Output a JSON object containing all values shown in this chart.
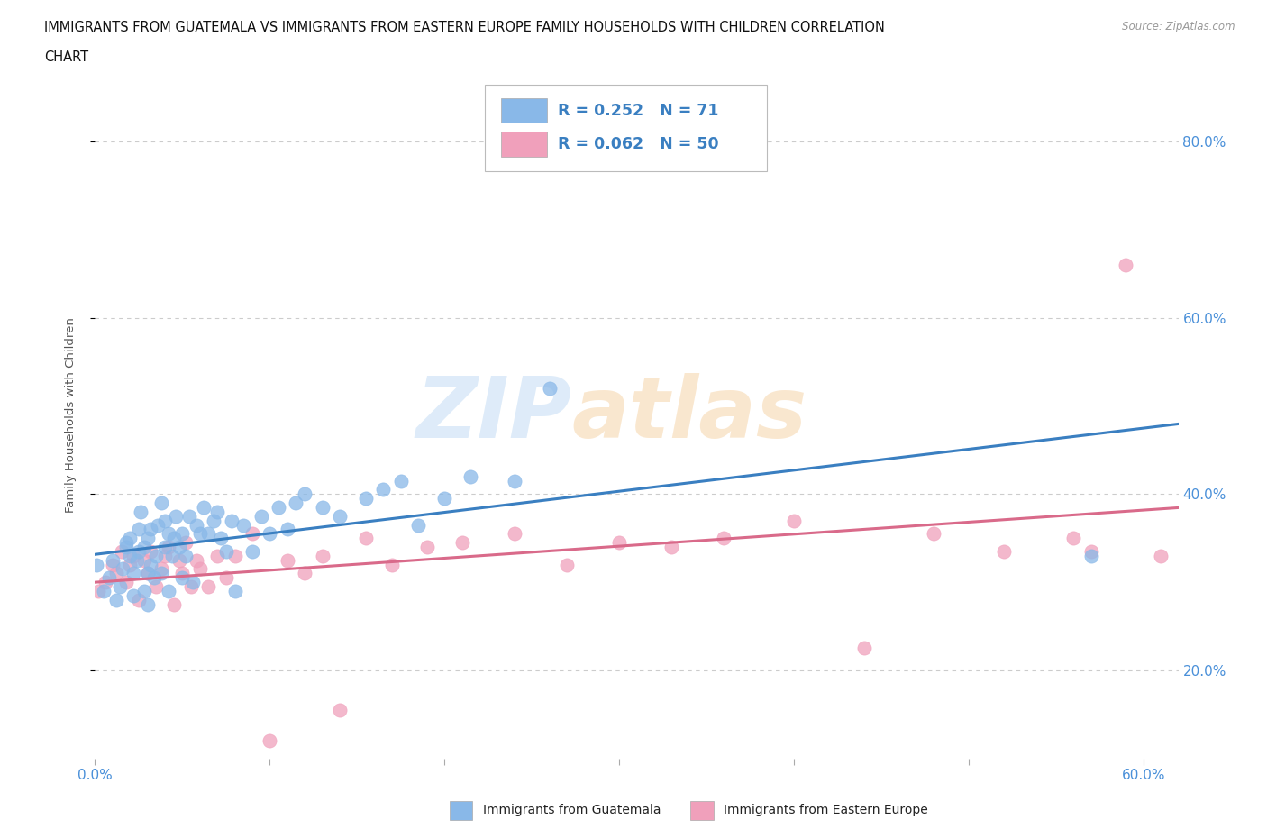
{
  "title_line1": "IMMIGRANTS FROM GUATEMALA VS IMMIGRANTS FROM EASTERN EUROPE FAMILY HOUSEHOLDS WITH CHILDREN CORRELATION",
  "title_line2": "CHART",
  "source": "Source: ZipAtlas.com",
  "ylabel": "Family Households with Children",
  "xlim": [
    0.0,
    0.62
  ],
  "ylim": [
    0.1,
    0.88
  ],
  "xticks": [
    0.0,
    0.1,
    0.2,
    0.3,
    0.4,
    0.5,
    0.6
  ],
  "xticklabels": [
    "0.0%",
    "",
    "",
    "",
    "",
    "",
    "60.0%"
  ],
  "ytick_positions": [
    0.2,
    0.4,
    0.6,
    0.8
  ],
  "ytick_labels": [
    "20.0%",
    "40.0%",
    "60.0%",
    "80.0%"
  ],
  "color_guatemala": "#89B8E8",
  "color_eastern_europe": "#F0A0BB",
  "color_line_guatemala": "#3A7FC1",
  "color_line_eastern_europe": "#D96A8A",
  "label_guatemala": "Immigrants from Guatemala",
  "label_eastern_europe": "Immigrants from Eastern Europe",
  "grid_color": "#CCCCCC",
  "bg_color": "#FFFFFF",
  "guatemala_x": [
    0.001,
    0.005,
    0.008,
    0.01,
    0.012,
    0.014,
    0.016,
    0.018,
    0.018,
    0.02,
    0.02,
    0.022,
    0.022,
    0.024,
    0.025,
    0.025,
    0.026,
    0.028,
    0.028,
    0.03,
    0.03,
    0.03,
    0.032,
    0.032,
    0.034,
    0.035,
    0.036,
    0.038,
    0.038,
    0.04,
    0.04,
    0.042,
    0.042,
    0.044,
    0.045,
    0.046,
    0.048,
    0.05,
    0.05,
    0.052,
    0.054,
    0.056,
    0.058,
    0.06,
    0.062,
    0.065,
    0.068,
    0.07,
    0.072,
    0.075,
    0.078,
    0.08,
    0.085,
    0.09,
    0.095,
    0.1,
    0.105,
    0.11,
    0.115,
    0.12,
    0.13,
    0.14,
    0.155,
    0.165,
    0.175,
    0.185,
    0.2,
    0.215,
    0.24,
    0.26,
    0.57
  ],
  "guatemala_y": [
    0.32,
    0.29,
    0.305,
    0.325,
    0.28,
    0.295,
    0.315,
    0.34,
    0.345,
    0.33,
    0.35,
    0.285,
    0.31,
    0.325,
    0.335,
    0.36,
    0.38,
    0.29,
    0.34,
    0.275,
    0.31,
    0.35,
    0.32,
    0.36,
    0.305,
    0.33,
    0.365,
    0.31,
    0.39,
    0.34,
    0.37,
    0.29,
    0.355,
    0.33,
    0.35,
    0.375,
    0.34,
    0.305,
    0.355,
    0.33,
    0.375,
    0.3,
    0.365,
    0.355,
    0.385,
    0.355,
    0.37,
    0.38,
    0.35,
    0.335,
    0.37,
    0.29,
    0.365,
    0.335,
    0.375,
    0.355,
    0.385,
    0.36,
    0.39,
    0.4,
    0.385,
    0.375,
    0.395,
    0.405,
    0.415,
    0.365,
    0.395,
    0.42,
    0.415,
    0.52,
    0.33
  ],
  "eastern_europe_x": [
    0.002,
    0.006,
    0.01,
    0.012,
    0.015,
    0.018,
    0.02,
    0.022,
    0.025,
    0.028,
    0.03,
    0.032,
    0.035,
    0.038,
    0.04,
    0.042,
    0.045,
    0.048,
    0.05,
    0.052,
    0.055,
    0.058,
    0.06,
    0.065,
    0.07,
    0.075,
    0.08,
    0.09,
    0.1,
    0.11,
    0.12,
    0.13,
    0.14,
    0.155,
    0.17,
    0.19,
    0.21,
    0.24,
    0.27,
    0.3,
    0.33,
    0.36,
    0.4,
    0.44,
    0.48,
    0.52,
    0.56,
    0.59,
    0.61,
    0.57
  ],
  "eastern_europe_y": [
    0.29,
    0.3,
    0.32,
    0.31,
    0.335,
    0.3,
    0.32,
    0.33,
    0.28,
    0.325,
    0.31,
    0.335,
    0.295,
    0.315,
    0.33,
    0.34,
    0.275,
    0.325,
    0.31,
    0.345,
    0.295,
    0.325,
    0.315,
    0.295,
    0.33,
    0.305,
    0.33,
    0.355,
    0.12,
    0.325,
    0.31,
    0.33,
    0.155,
    0.35,
    0.32,
    0.34,
    0.345,
    0.355,
    0.32,
    0.345,
    0.34,
    0.35,
    0.37,
    0.225,
    0.355,
    0.335,
    0.35,
    0.66,
    0.33,
    0.335
  ]
}
